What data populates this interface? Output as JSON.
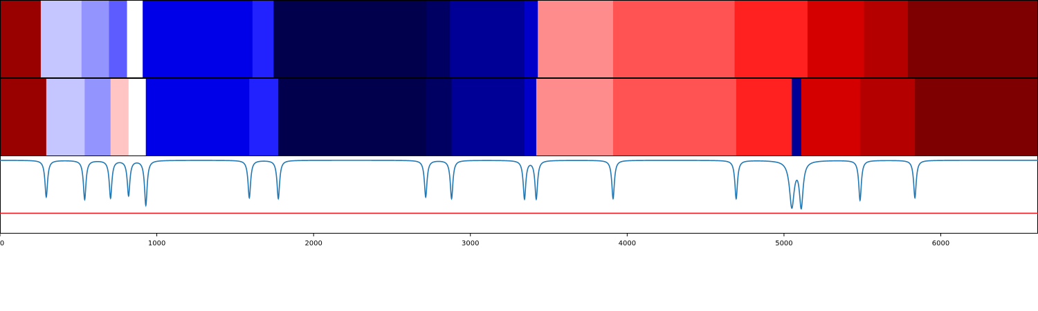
{
  "chart_data": [
    {
      "type": "heatmap",
      "title": "",
      "xlim": [
        0,
        6620
      ],
      "segments": [
        {
          "start": 0,
          "end": 260,
          "color": "#990000"
        },
        {
          "start": 260,
          "end": 520,
          "color": "#c5c5ff"
        },
        {
          "start": 520,
          "end": 695,
          "color": "#9494ff"
        },
        {
          "start": 695,
          "end": 810,
          "color": "#5c5cff"
        },
        {
          "start": 810,
          "end": 910,
          "color": "#ffffff"
        },
        {
          "start": 910,
          "end": 1610,
          "color": "#0000e8"
        },
        {
          "start": 1610,
          "end": 1745,
          "color": "#2222ff"
        },
        {
          "start": 1745,
          "end": 2720,
          "color": "#00004c"
        },
        {
          "start": 2720,
          "end": 2870,
          "color": "#000062"
        },
        {
          "start": 2870,
          "end": 3345,
          "color": "#000096"
        },
        {
          "start": 3345,
          "end": 3430,
          "color": "#0000c8"
        },
        {
          "start": 3430,
          "end": 3910,
          "color": "#ff8c8c"
        },
        {
          "start": 3910,
          "end": 4685,
          "color": "#ff5353"
        },
        {
          "start": 4685,
          "end": 5150,
          "color": "#ff2020"
        },
        {
          "start": 5150,
          "end": 5510,
          "color": "#d40000"
        },
        {
          "start": 5510,
          "end": 5790,
          "color": "#b50000"
        },
        {
          "start": 5790,
          "end": 6620,
          "color": "#7f0000"
        }
      ]
    },
    {
      "type": "heatmap",
      "title": "",
      "xlim": [
        0,
        6620
      ],
      "segments": [
        {
          "start": 0,
          "end": 295,
          "color": "#990000"
        },
        {
          "start": 295,
          "end": 540,
          "color": "#c5c5ff"
        },
        {
          "start": 540,
          "end": 705,
          "color": "#9494ff"
        },
        {
          "start": 705,
          "end": 820,
          "color": "#ffc4c4"
        },
        {
          "start": 820,
          "end": 930,
          "color": "#ffffff"
        },
        {
          "start": 930,
          "end": 1590,
          "color": "#0000e8"
        },
        {
          "start": 1590,
          "end": 1775,
          "color": "#2222ff"
        },
        {
          "start": 1775,
          "end": 2715,
          "color": "#00004c"
        },
        {
          "start": 2715,
          "end": 2880,
          "color": "#000062"
        },
        {
          "start": 2880,
          "end": 3345,
          "color": "#000096"
        },
        {
          "start": 3345,
          "end": 3420,
          "color": "#0000c8"
        },
        {
          "start": 3420,
          "end": 3910,
          "color": "#ff8c8c"
        },
        {
          "start": 3910,
          "end": 4695,
          "color": "#ff5353"
        },
        {
          "start": 4695,
          "end": 5050,
          "color": "#ff2020"
        },
        {
          "start": 5050,
          "end": 5110,
          "color": "#000096"
        },
        {
          "start": 5110,
          "end": 5485,
          "color": "#d40000"
        },
        {
          "start": 5485,
          "end": 5835,
          "color": "#b50000"
        },
        {
          "start": 5835,
          "end": 6620,
          "color": "#7f0000"
        }
      ]
    },
    {
      "type": "line",
      "title": "",
      "xlabel": "",
      "ylabel": "",
      "xlim": [
        0,
        6620
      ],
      "ylim": [
        -0.9,
        0.05
      ],
      "grid": false,
      "xticks": [
        0,
        1000,
        2000,
        3000,
        4000,
        5000,
        6000
      ],
      "xtick_labels": [
        "0",
        "1000",
        "2000",
        "3000",
        "4000",
        "5000",
        "6000"
      ],
      "threshold": {
        "y": -0.65,
        "color": "#e8161a"
      },
      "series": [
        {
          "color": "#1f77b4",
          "baseline": 0,
          "dips": [
            {
              "x": 295,
              "depth": 0.45,
              "width": 10
            },
            {
              "x": 540,
              "depth": 0.48,
              "width": 10
            },
            {
              "x": 705,
              "depth": 0.46,
              "width": 10
            },
            {
              "x": 820,
              "depth": 0.43,
              "width": 10
            },
            {
              "x": 930,
              "depth": 0.55,
              "width": 10
            },
            {
              "x": 1590,
              "depth": 0.46,
              "width": 10
            },
            {
              "x": 1775,
              "depth": 0.47,
              "width": 10
            },
            {
              "x": 2715,
              "depth": 0.45,
              "width": 10
            },
            {
              "x": 2880,
              "depth": 0.47,
              "width": 10
            },
            {
              "x": 3345,
              "depth": 0.47,
              "width": 10
            },
            {
              "x": 3420,
              "depth": 0.47,
              "width": 10
            },
            {
              "x": 3910,
              "depth": 0.47,
              "width": 10
            },
            {
              "x": 4695,
              "depth": 0.47,
              "width": 10
            },
            {
              "x": 5050,
              "depth": 0.56,
              "width": 18
            },
            {
              "x": 5110,
              "depth": 0.55,
              "width": 14
            },
            {
              "x": 5485,
              "depth": 0.49,
              "width": 10
            },
            {
              "x": 5835,
              "depth": 0.46,
              "width": 10
            }
          ]
        }
      ]
    }
  ]
}
